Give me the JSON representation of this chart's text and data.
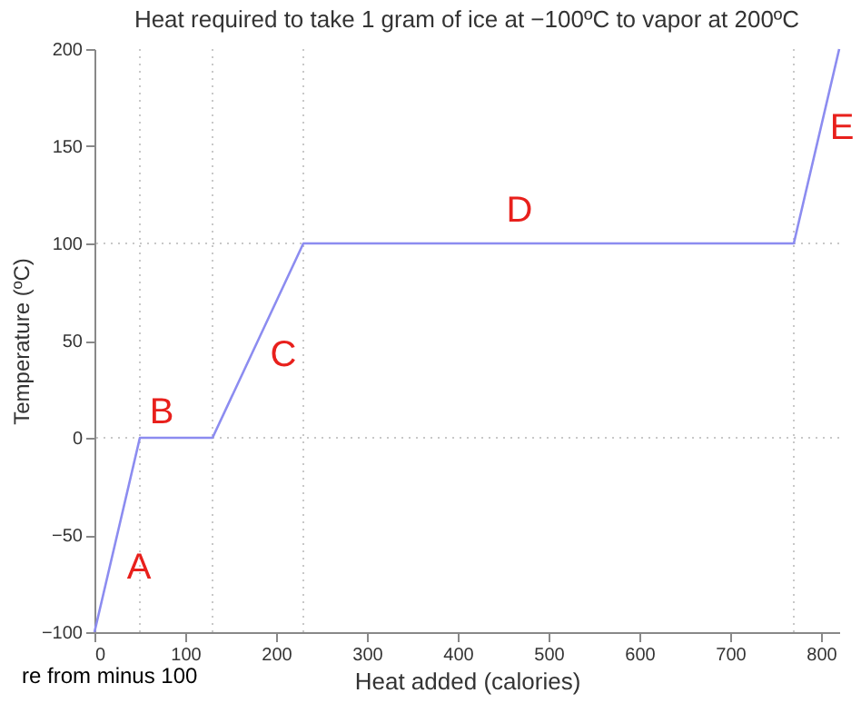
{
  "chart_data": {
    "type": "line",
    "title": "Heat required to take 1 gram of ice at −100ºC to vapor at 200ºC",
    "xlabel": "Heat added (calories)",
    "ylabel": "Temperature (ºC)",
    "x": [
      0,
      50,
      130,
      230,
      770,
      820
    ],
    "series": [
      {
        "color": "#8c8cf0",
        "values": [
          -100,
          0,
          0,
          100,
          100,
          200
        ]
      }
    ],
    "xlim": [
      0,
      820
    ],
    "ylim": [
      -100,
      200
    ],
    "xticks": [
      0,
      100,
      200,
      300,
      400,
      500,
      600,
      700,
      800
    ],
    "yticks": [
      -100,
      -50,
      0,
      50,
      100,
      150,
      200
    ],
    "grid": false,
    "marker": "none",
    "line_style": "solid",
    "ref_lines": [
      {
        "axis": "x",
        "value": 50,
        "color": "#c8c8c8",
        "line_style": "dotted"
      },
      {
        "axis": "x",
        "value": 130,
        "color": "#c8c8c8",
        "line_style": "dotted"
      },
      {
        "axis": "x",
        "value": 230,
        "color": "#c8c8c8",
        "line_style": "dotted"
      },
      {
        "axis": "x",
        "value": 770,
        "color": "#c8c8c8",
        "line_style": "dotted"
      },
      {
        "axis": "y",
        "value": 0,
        "color": "#c8c8c8",
        "line_style": "dotted"
      },
      {
        "axis": "y",
        "value": 100,
        "color": "#c8c8c8",
        "line_style": "dotted"
      }
    ],
    "annotations": [
      "A",
      "B",
      "C",
      "D",
      "E",
      "re from minus 100"
    ]
  }
}
